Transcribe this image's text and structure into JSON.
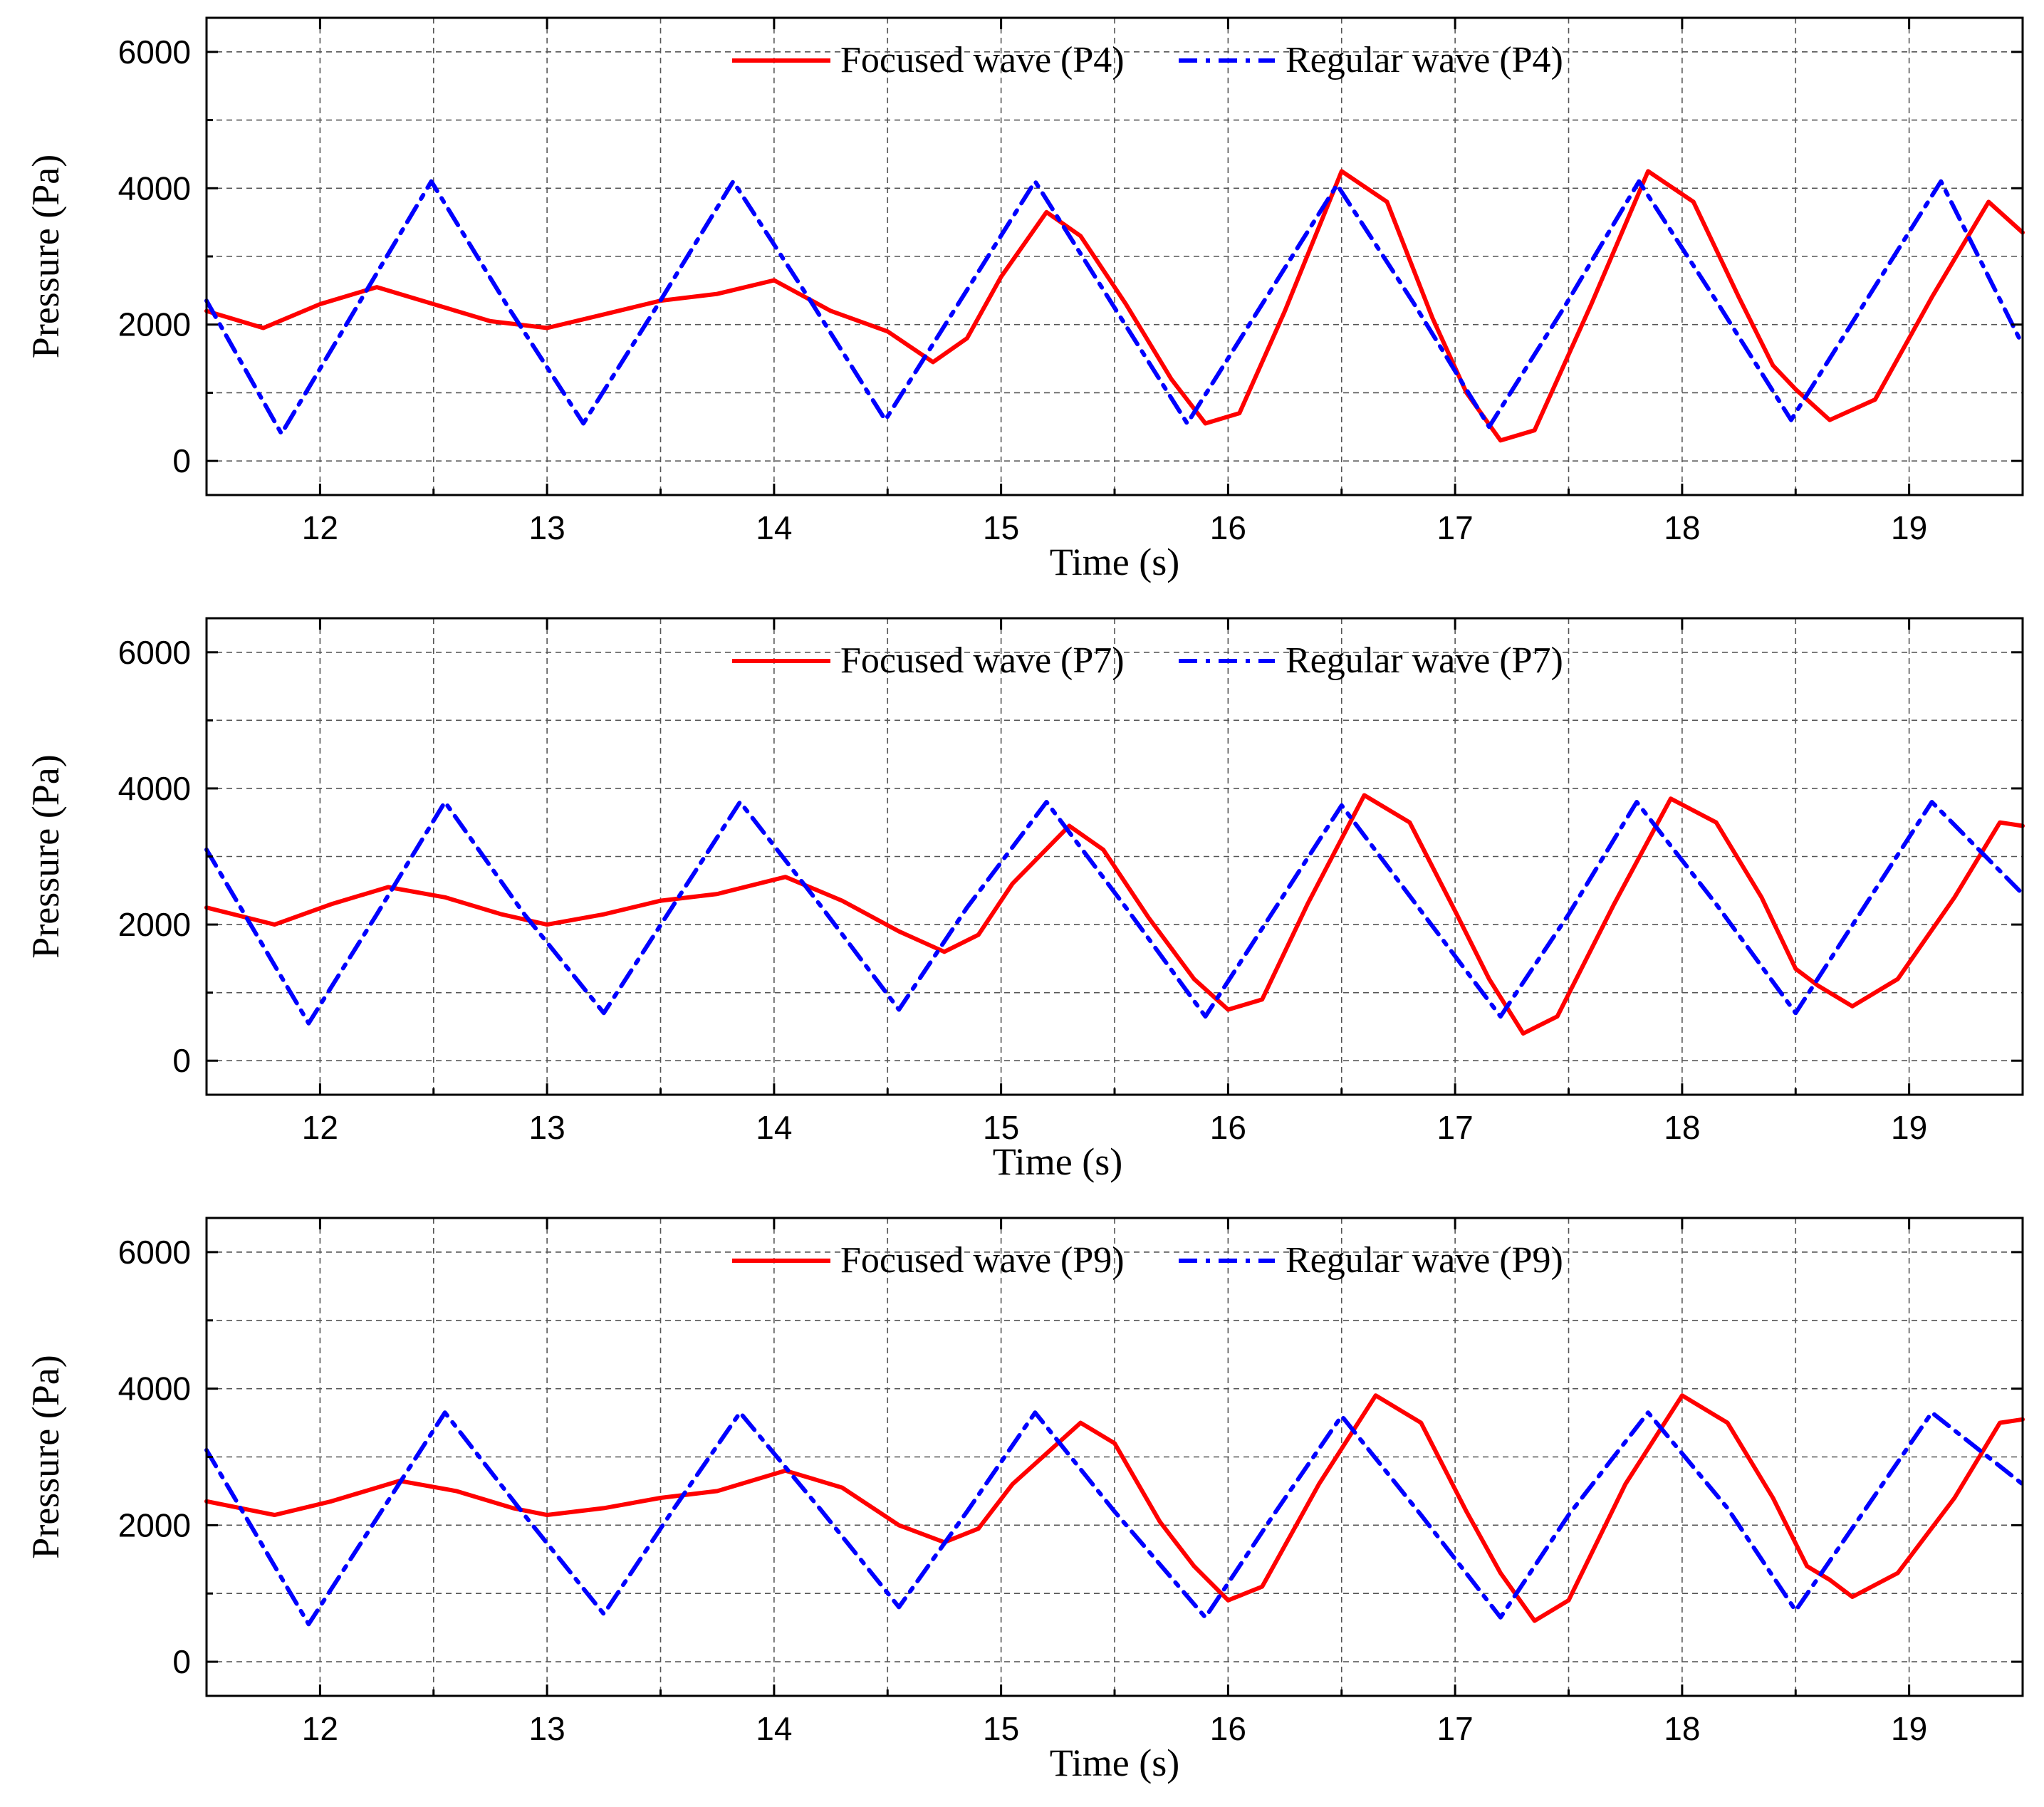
{
  "chart_data": [
    {
      "type": "line",
      "panel": "P4",
      "xlabel": "Time (s)",
      "ylabel": "Pressure (Pa)",
      "xlim": [
        11.5,
        19.5
      ],
      "ylim": [
        -500,
        6500
      ],
      "xticks": [
        12,
        13,
        14,
        15,
        16,
        17,
        18,
        19
      ],
      "yticks": [
        0,
        2000,
        4000,
        6000
      ],
      "grid": true,
      "legend_position": "top-center",
      "series": [
        {
          "name": "Focused wave (P4)",
          "color": "#ff0000",
          "style": "solid",
          "x": [
            11.5,
            11.75,
            12.0,
            12.25,
            12.5,
            12.75,
            13.0,
            13.25,
            13.5,
            13.75,
            14.0,
            14.25,
            14.5,
            14.7,
            14.85,
            15.0,
            15.2,
            15.35,
            15.55,
            15.75,
            15.9,
            16.05,
            16.25,
            16.5,
            16.7,
            16.9,
            17.05,
            17.2,
            17.35,
            17.6,
            17.85,
            18.05,
            18.25,
            18.4,
            18.5,
            18.65,
            18.85,
            19.1,
            19.35,
            19.5
          ],
          "y": [
            2200,
            1950,
            2300,
            2550,
            2300,
            2050,
            1950,
            2150,
            2350,
            2450,
            2650,
            2200,
            1900,
            1450,
            1800,
            2700,
            3650,
            3300,
            2300,
            1200,
            550,
            700,
            2200,
            4250,
            3800,
            2100,
            1000,
            300,
            450,
            2300,
            4250,
            3800,
            2400,
            1400,
            1050,
            600,
            900,
            2400,
            3800,
            3350
          ]
        },
        {
          "name": "Regular wave (P4)",
          "color": "#0000ff",
          "style": "dash-dot",
          "x": [
            11.5,
            11.83,
            12.16,
            12.49,
            12.83,
            13.16,
            13.49,
            13.82,
            14.16,
            14.49,
            14.82,
            15.15,
            15.49,
            15.82,
            16.15,
            16.48,
            16.82,
            17.15,
            17.48,
            17.81,
            18.15,
            18.48,
            18.81,
            19.14,
            19.5
          ],
          "y": [
            2350,
            400,
            2250,
            4100,
            2250,
            550,
            2300,
            4100,
            2350,
            600,
            2350,
            4100,
            2300,
            550,
            2300,
            4050,
            2300,
            500,
            2250,
            4100,
            2350,
            600,
            2350,
            4100,
            1700
          ]
        }
      ]
    },
    {
      "type": "line",
      "panel": "P7",
      "xlabel": "Time (s)",
      "ylabel": "Pressure (Pa)",
      "xlim": [
        11.5,
        19.5
      ],
      "ylim": [
        -500,
        6500
      ],
      "xticks": [
        12,
        13,
        14,
        15,
        16,
        17,
        18,
        19
      ],
      "yticks": [
        0,
        2000,
        4000,
        6000
      ],
      "grid": true,
      "legend_position": "top-center",
      "series": [
        {
          "name": "Focused wave (P7)",
          "color": "#ff0000",
          "style": "solid",
          "x": [
            11.5,
            11.8,
            12.05,
            12.3,
            12.55,
            12.8,
            13.0,
            13.25,
            13.5,
            13.75,
            14.05,
            14.3,
            14.55,
            14.75,
            14.9,
            15.05,
            15.3,
            15.45,
            15.65,
            15.85,
            16.0,
            16.15,
            16.35,
            16.6,
            16.8,
            17.0,
            17.15,
            17.3,
            17.45,
            17.7,
            17.95,
            18.15,
            18.35,
            18.5,
            18.6,
            18.75,
            18.95,
            19.2,
            19.4,
            19.5
          ],
          "y": [
            2250,
            2000,
            2300,
            2550,
            2400,
            2150,
            2000,
            2150,
            2350,
            2450,
            2700,
            2350,
            1900,
            1600,
            1850,
            2600,
            3450,
            3100,
            2100,
            1200,
            750,
            900,
            2300,
            3900,
            3500,
            2200,
            1200,
            400,
            650,
            2300,
            3850,
            3500,
            2400,
            1350,
            1100,
            800,
            1200,
            2400,
            3500,
            3450
          ]
        },
        {
          "name": "Regular wave (P7)",
          "color": "#0000ff",
          "style": "dash-dot",
          "x": [
            11.5,
            11.95,
            12.25,
            12.55,
            12.9,
            13.25,
            13.55,
            13.85,
            14.2,
            14.55,
            14.85,
            15.2,
            15.55,
            15.9,
            16.2,
            16.5,
            16.85,
            17.2,
            17.5,
            17.8,
            18.15,
            18.5,
            18.8,
            19.1,
            19.5
          ],
          "y": [
            3100,
            550,
            2150,
            3800,
            2150,
            700,
            2250,
            3800,
            2300,
            750,
            2250,
            3800,
            2250,
            650,
            2200,
            3750,
            2200,
            650,
            2150,
            3800,
            2300,
            700,
            2250,
            3800,
            2450
          ]
        }
      ]
    },
    {
      "type": "line",
      "panel": "P9",
      "xlabel": "Time (s)",
      "ylabel": "Pressure (Pa)",
      "xlim": [
        11.5,
        19.5
      ],
      "ylim": [
        -500,
        6500
      ],
      "xticks": [
        12,
        13,
        14,
        15,
        16,
        17,
        18,
        19
      ],
      "yticks": [
        0,
        2000,
        4000,
        6000
      ],
      "grid": true,
      "legend_position": "top-center",
      "series": [
        {
          "name": "Focused wave (P9)",
          "color": "#ff0000",
          "style": "solid",
          "x": [
            11.5,
            11.8,
            12.05,
            12.35,
            12.6,
            12.85,
            13.0,
            13.25,
            13.5,
            13.75,
            14.05,
            14.3,
            14.55,
            14.75,
            14.9,
            15.05,
            15.35,
            15.5,
            15.7,
            15.85,
            16.0,
            16.15,
            16.4,
            16.65,
            16.85,
            17.05,
            17.2,
            17.35,
            17.5,
            17.75,
            18.0,
            18.2,
            18.4,
            18.55,
            18.65,
            18.75,
            18.95,
            19.2,
            19.4,
            19.5
          ],
          "y": [
            2350,
            2150,
            2350,
            2650,
            2500,
            2250,
            2150,
            2250,
            2400,
            2500,
            2800,
            2550,
            2000,
            1750,
            1950,
            2600,
            3500,
            3200,
            2050,
            1400,
            900,
            1100,
            2600,
            3900,
            3500,
            2200,
            1300,
            600,
            900,
            2600,
            3900,
            3500,
            2400,
            1400,
            1200,
            950,
            1300,
            2400,
            3500,
            3550
          ]
        },
        {
          "name": "Regular wave (P9)",
          "color": "#0000ff",
          "style": "dash-dot",
          "x": [
            11.5,
            11.95,
            12.25,
            12.55,
            12.9,
            13.25,
            13.55,
            13.85,
            14.2,
            14.55,
            14.85,
            15.15,
            15.5,
            15.9,
            16.2,
            16.5,
            16.85,
            17.2,
            17.5,
            17.85,
            18.2,
            18.5,
            18.8,
            19.1,
            19.5
          ],
          "y": [
            3100,
            550,
            2100,
            3650,
            2150,
            700,
            2200,
            3650,
            2250,
            800,
            2200,
            3650,
            2200,
            650,
            2150,
            3600,
            2150,
            650,
            2150,
            3650,
            2250,
            750,
            2200,
            3650,
            2600
          ]
        }
      ]
    }
  ]
}
